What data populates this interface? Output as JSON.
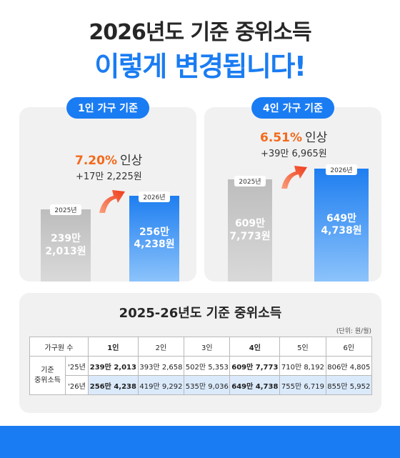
{
  "header": {
    "line1": "2026년도 기준 중위소득",
    "line2": "이렇게 변경됩니다!"
  },
  "colors": {
    "accent": "#1a7cf2",
    "increase": "#f36a1b"
  },
  "card_1p": {
    "pill": "1인 가구 기준",
    "pct": "7.20%",
    "pct_word": "인상",
    "diff": "+17만 2,225원",
    "bar_2025": {
      "year": "2025년",
      "line1": "239만",
      "line2": "2,013원"
    },
    "bar_2026": {
      "year": "2026년",
      "line1": "256만",
      "line2": "4,238원"
    },
    "arrow_icon": "up-arrow-icon"
  },
  "card_4p": {
    "pill": "4인 가구 기준",
    "pct": "6.51%",
    "pct_word": "인상",
    "diff": "+39만 6,965원",
    "bar_2025": {
      "year": "2025년",
      "line1": "609만",
      "line2": "7,773원"
    },
    "bar_2026": {
      "year": "2026년",
      "line1": "649만",
      "line2": "4,738원"
    },
    "arrow_icon": "up-arrow-icon"
  },
  "table": {
    "title": "2025-26년도 기준 중위소득",
    "unit": "(단위: 원/월)",
    "header_label": "가구원 수",
    "columns": [
      "1인",
      "2인",
      "3인",
      "4인",
      "5인",
      "6인"
    ],
    "row_group_label_1": "기준",
    "row_group_label_2": "중위소득",
    "rows": [
      {
        "year": "'25년",
        "values": [
          "239만 2,013",
          "393만 2,658",
          "502만 5,353",
          "609만 7,773",
          "710만 8,192",
          "806만 4,805"
        ]
      },
      {
        "year": "'26년",
        "values": [
          "256만 4,238",
          "419만 9,292",
          "535만 9,036",
          "649만 4,738",
          "755만 6,719",
          "855만 5,952"
        ]
      }
    ]
  }
}
